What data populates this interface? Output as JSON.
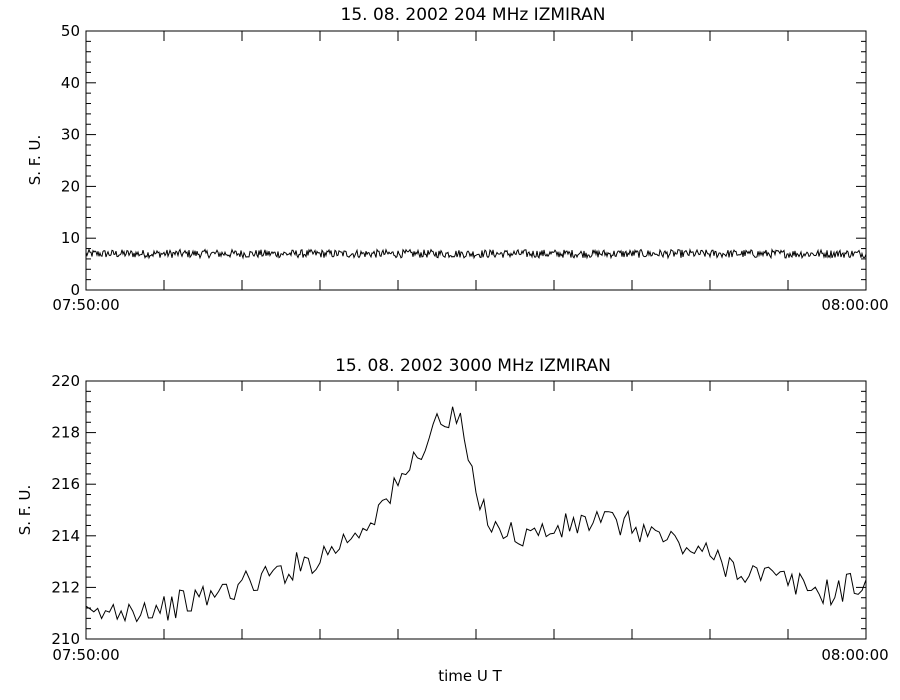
{
  "chart_data": [
    {
      "type": "line",
      "title": "15.  08.  2002    204 MHz    IZMIRAN",
      "ylabel": "S. F. U.",
      "xlabel": "",
      "xlim_min": [
        470,
        480
      ],
      "x_tick_labels": [
        "07:50:00",
        "08:00:00"
      ],
      "ylim": [
        0,
        50
      ],
      "y_ticks": [
        0,
        10,
        20,
        30,
        40,
        50
      ],
      "series": [
        {
          "x_min": [
            470,
            470.5,
            471,
            471.5,
            472,
            472.5,
            473,
            473.5,
            474,
            474.5,
            475,
            475.5,
            476,
            476.5,
            477,
            477.5,
            478,
            478.5,
            479,
            479.5,
            480
          ],
          "values": [
            7,
            7,
            7,
            7,
            7,
            7,
            7,
            7,
            7,
            7,
            7,
            7,
            7,
            7,
            7,
            7,
            7,
            7,
            7,
            7,
            7
          ]
        }
      ],
      "grid": false
    },
    {
      "type": "line",
      "title": "15.  08.  2002    3000 MHz    IZMIRAN",
      "ylabel": "S. F. U.",
      "xlabel": "time  U T",
      "xlim_min": [
        470,
        480
      ],
      "x_tick_labels": [
        "07:50:00",
        "08:00:00"
      ],
      "ylim": [
        210,
        220
      ],
      "y_ticks": [
        210,
        212,
        214,
        216,
        218,
        220
      ],
      "series": [
        {
          "x_min": [
            470,
            470.5,
            471,
            471.5,
            472,
            472.5,
            473,
            473.5,
            474,
            474.5,
            474.8,
            475,
            475.3,
            475.5,
            476,
            476.5,
            477,
            477.5,
            478,
            478.5,
            479,
            479.5,
            480
          ],
          "values": [
            210.8,
            211.2,
            211.2,
            211.6,
            212.1,
            212.6,
            213.2,
            214.2,
            215.9,
            218.4,
            218.5,
            215.4,
            214.3,
            214.0,
            214.2,
            214.6,
            214.4,
            213.8,
            213.2,
            212.6,
            212.2,
            211.8,
            212.2
          ]
        }
      ],
      "grid": false
    }
  ]
}
